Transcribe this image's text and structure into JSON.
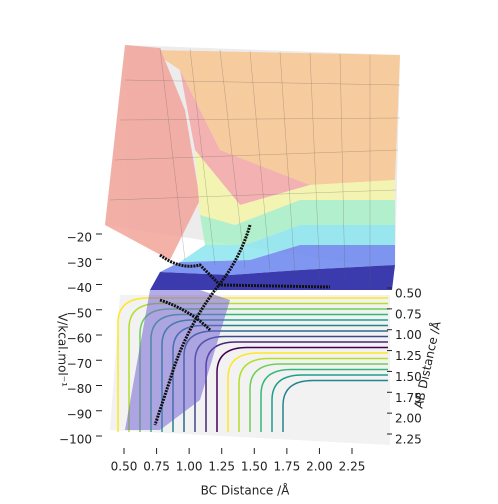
{
  "chart_data": {
    "type": "surface3d",
    "xlabel": "BC Distance /Å",
    "ylabel": "AB Distance /Å",
    "zlabel": "V/kcal.mol⁻¹",
    "xlim": [
      0.5,
      2.25
    ],
    "ylim": [
      0.5,
      2.25
    ],
    "zlim": [
      -100,
      -20
    ],
    "xticks": [
      {
        "value": 0.5,
        "label": "0.50"
      },
      {
        "value": 0.75,
        "label": "0.75"
      },
      {
        "value": 1.0,
        "label": "1.00"
      },
      {
        "value": 1.25,
        "label": "1.25"
      },
      {
        "value": 1.5,
        "label": "1.50"
      },
      {
        "value": 1.75,
        "label": "1.75"
      },
      {
        "value": 2.0,
        "label": "2.00"
      },
      {
        "value": 2.25,
        "label": "2.25"
      }
    ],
    "yticks": [
      {
        "value": 0.5,
        "label": "0.50"
      },
      {
        "value": 0.75,
        "label": "0.75"
      },
      {
        "value": 1.0,
        "label": "1.00"
      },
      {
        "value": 1.25,
        "label": "1.25"
      },
      {
        "value": 1.5,
        "label": "1.50"
      },
      {
        "value": 1.75,
        "label": "1.75"
      },
      {
        "value": 2.0,
        "label": "2.00"
      },
      {
        "value": 2.25,
        "label": "2.25"
      }
    ],
    "zticks": [
      {
        "value": -20,
        "label": "−20"
      },
      {
        "value": -30,
        "label": "−30"
      },
      {
        "value": -40,
        "label": "−40"
      },
      {
        "value": -50,
        "label": "−50"
      },
      {
        "value": -60,
        "label": "−60"
      },
      {
        "value": -70,
        "label": "−70"
      },
      {
        "value": -80,
        "label": "−80"
      },
      {
        "value": -90,
        "label": "−90"
      },
      {
        "value": -100,
        "label": "−100"
      }
    ]
  }
}
